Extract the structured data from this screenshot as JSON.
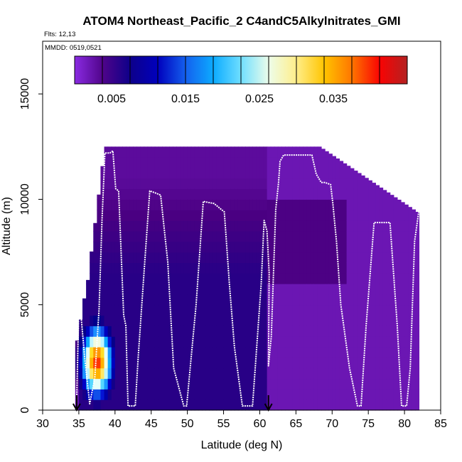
{
  "chart_data": {
    "type": "heatmap",
    "title": "ATOM4 Northeast_Pacific_2 C4andC5Alkylnitrates_GMI",
    "flights_label": "Flts: 12,13",
    "mmdd_label": "MMDD: 0519,0521",
    "xlabel": "Latitude (deg N)",
    "ylabel": "Altitude (m)",
    "xlim": [
      30,
      85
    ],
    "ylim": [
      0,
      17500
    ],
    "x_ticks": [
      30,
      35,
      40,
      45,
      50,
      55,
      60,
      65,
      70,
      75,
      80,
      85
    ],
    "y_ticks": [
      0,
      5000,
      10000,
      15000
    ],
    "colorbar": {
      "min": 0.0,
      "max": 0.045,
      "tick_values": [
        0.005,
        0.015,
        0.025,
        0.035
      ],
      "tick_labels": [
        "0.005",
        "0.015",
        "0.025",
        "0.035"
      ],
      "colors": [
        "#8A2BE2",
        "#4B0082",
        "#00008B",
        "#0000CD",
        "#1E90FF",
        "#00BFFF",
        "#E0FFFF",
        "#FFFACD",
        "#FFD700",
        "#FF8C00",
        "#FF0000",
        "#B22222"
      ]
    },
    "arrows_at_latitude": [
      34.7,
      61.2
    ],
    "field_summary": {
      "background_value": 0.002,
      "blue_region_lat": [
        35,
        61
      ],
      "blue_region_value": 0.006,
      "hotspot_center_lat": 37.5,
      "hotspot_center_alt": 2300,
      "hotspot_peak_value": 0.04,
      "hotspot_lat_halfwidth": 2.2,
      "hotspot_alt_halfwidth": 1700,
      "profile_top_alt": 12500
    },
    "flight_track": {
      "lat": [
        34.7,
        35.0,
        35.2,
        35.8,
        36.5,
        37.2,
        37.8,
        38.2,
        38.6,
        39.3,
        39.7,
        40.1,
        40.5,
        41.2,
        41.5,
        41.8,
        42.8,
        43.2,
        44.1,
        44.8,
        45.6,
        46.3,
        47.3,
        48.1,
        49.5,
        49.9,
        51.2,
        52.2,
        53.7,
        55.1,
        55.8,
        56.5,
        57.6,
        59.0,
        60.2,
        60.6,
        61.0,
        61.3,
        61.2,
        61.6,
        62.2,
        62.6,
        62.8,
        63.3,
        65.0,
        67.2,
        67.8,
        68.5,
        69.0,
        69.8,
        70.1,
        70.6,
        71.2,
        72.4,
        73.5,
        74.0,
        74.7,
        75.8,
        77.0,
        78.0,
        79.0,
        79.6,
        80.3,
        80.8,
        81.4,
        82.0,
        82.2
      ],
      "alt": [
        500,
        4900,
        4900,
        2500,
        300,
        1500,
        4800,
        9000,
        12200,
        12200,
        12300,
        10500,
        10400,
        4500,
        4000,
        200,
        200,
        2500,
        7000,
        10400,
        10300,
        10200,
        7000,
        2000,
        200,
        200,
        5000,
        9900,
        9800,
        9400,
        6000,
        3000,
        200,
        200,
        6000,
        9000,
        8500,
        6500,
        2100,
        3500,
        9500,
        10800,
        11800,
        12100,
        12100,
        12100,
        11200,
        10800,
        10800,
        10700,
        9800,
        8000,
        5000,
        2000,
        200,
        200,
        4000,
        8900,
        8900,
        8900,
        4000,
        200,
        200,
        2000,
        8000,
        9500,
        9500
      ]
    }
  }
}
